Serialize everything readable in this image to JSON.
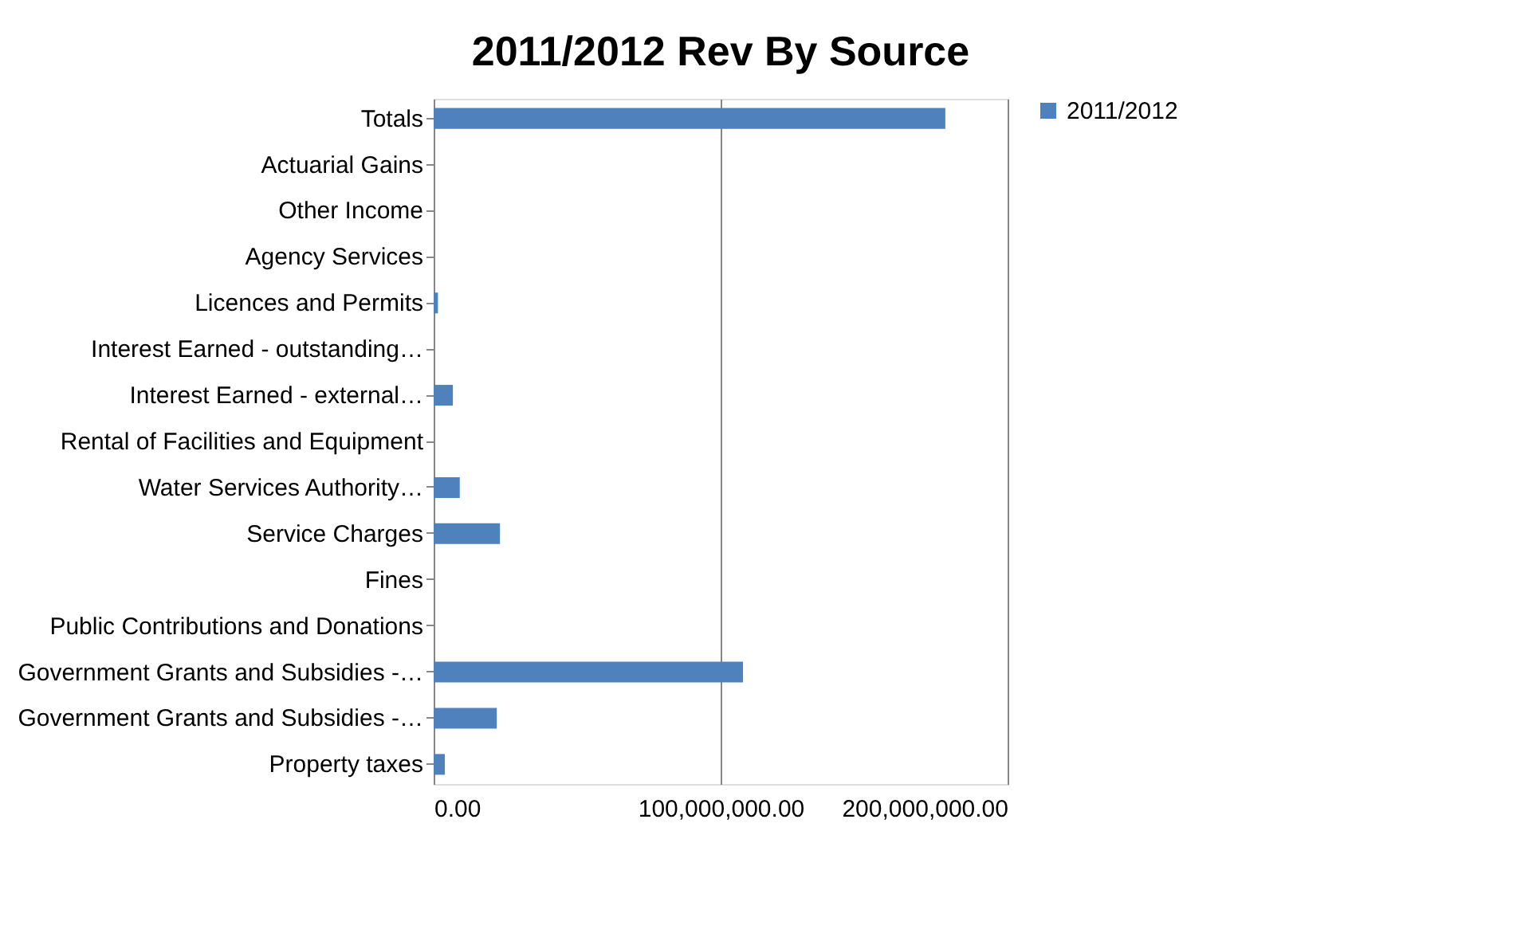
{
  "chart_data": {
    "type": "bar",
    "orientation": "horizontal",
    "title": "2011/2012 Rev By Source",
    "categories": [
      "Totals",
      "Actuarial Gains",
      "Other Income",
      "Agency Services",
      "Licences and Permits",
      "Interest Earned - outstanding…",
      "Interest Earned - external…",
      "Rental of Facilities and Equipment",
      "Water Services Authority…",
      "Service Charges",
      "Fines",
      "Public Contributions and Donations",
      "Government Grants and Subsidies -…",
      "Government Grants and Subsidies -…",
      "Property taxes"
    ],
    "series": [
      {
        "name": "2011/2012",
        "color": "#4f81bd",
        "values": [
          178300000,
          0,
          null,
          null,
          1500000,
          null,
          6700000,
          null,
          9100000,
          23100000,
          0,
          0,
          107800000,
          22000000,
          3900000
        ]
      }
    ],
    "xlim": [
      0,
      200000000
    ],
    "xticks": [
      {
        "value": 0,
        "label": "0.00"
      },
      {
        "value": 100000000,
        "label": "100,000,000.00"
      },
      {
        "value": 200000000,
        "label": "200,000,000.00"
      }
    ],
    "grid": "x",
    "legend": "right"
  }
}
